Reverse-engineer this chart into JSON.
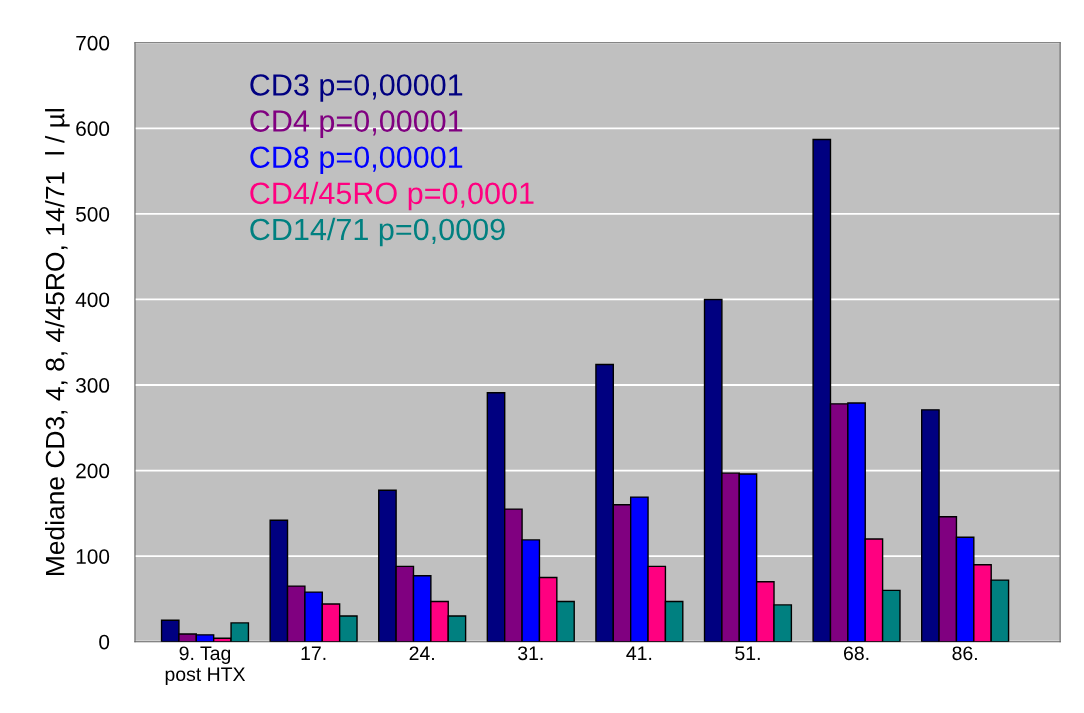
{
  "chart_data": {
    "type": "bar",
    "ylabel": "Mediane CD3, 4, 8, 4/45RO, 14/71  l / µl",
    "categories": [
      "9. Tag post HTX",
      "17.",
      "24.",
      "31.",
      "41.",
      "51.",
      "68.",
      "86."
    ],
    "series": [
      {
        "name": "CD3 p=0,00001",
        "color": "#000080",
        "values": [
          25,
          142,
          177,
          291,
          324,
          400,
          587,
          271
        ]
      },
      {
        "name": "CD4 p=0,00001",
        "color": "#800080",
        "values": [
          9,
          65,
          88,
          155,
          160,
          197,
          278,
          146
        ]
      },
      {
        "name": "CD8 p=0,00001",
        "color": "#0000ff",
        "values": [
          8,
          58,
          77,
          119,
          169,
          196,
          279,
          122
        ]
      },
      {
        "name": "CD4/45RO p=0,0001",
        "color": "#ff0080",
        "values": [
          4,
          44,
          47,
          75,
          88,
          70,
          120,
          90
        ]
      },
      {
        "name": "CD14/71 p=0,0009",
        "color": "#008080",
        "values": [
          22,
          30,
          30,
          47,
          47,
          43,
          60,
          72
        ]
      }
    ],
    "ylim": [
      0,
      700
    ],
    "yticks": [
      0,
      100,
      200,
      300,
      400,
      500,
      600,
      700
    ],
    "grid": "y",
    "legend": "top left"
  }
}
